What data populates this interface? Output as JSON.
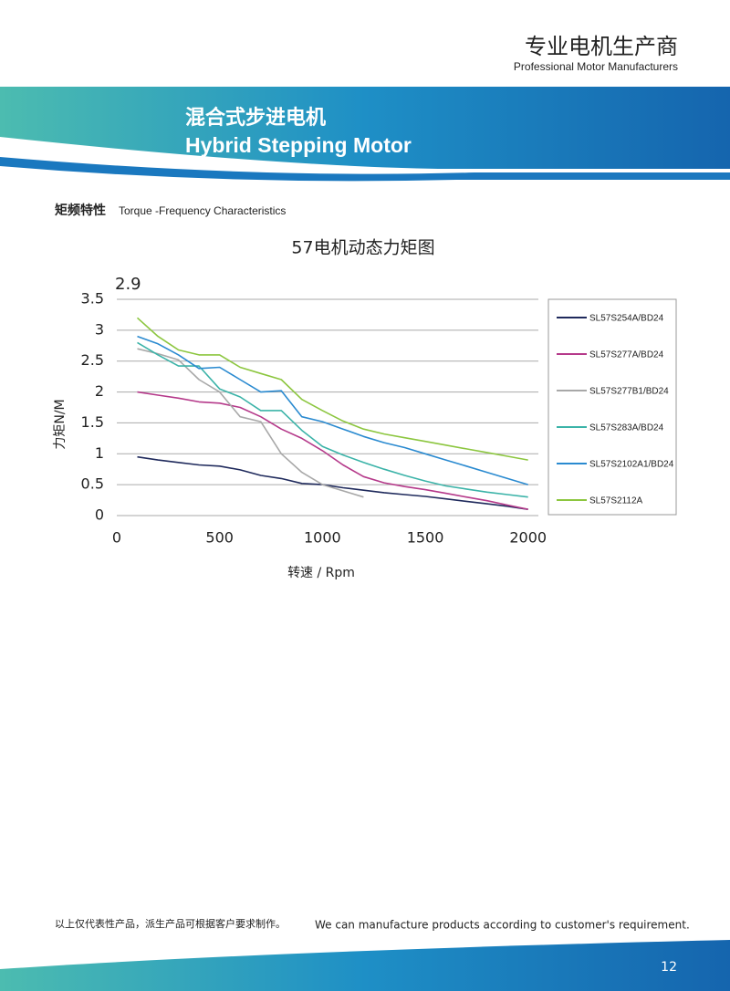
{
  "header": {
    "cn": "专业电机生产商",
    "en": "Professional Motor Manufacturers"
  },
  "banner": {
    "cn": "混合式步进电机",
    "en": "Hybrid Stepping Motor"
  },
  "section": {
    "cn": "矩频特性",
    "en": "Torque -Frequency Characteristics"
  },
  "chart_data": {
    "type": "line",
    "title": "57电机动态力矩图",
    "annotation": "2.9",
    "x_label": "转速 / Rpm",
    "y_label": "力矩N/M",
    "x": [
      100,
      200,
      300,
      400,
      500,
      600,
      700,
      800,
      900,
      1000,
      1100,
      1200,
      1300,
      1400,
      1500,
      1600,
      1700,
      1800,
      1900,
      2000
    ],
    "series": [
      {
        "name": "SL57S254A/BD24",
        "color": "#1f2a5c",
        "values": [
          0.95,
          0.9,
          0.86,
          0.82,
          0.8,
          0.74,
          0.65,
          0.6,
          0.52,
          0.5,
          0.45,
          0.41,
          0.37,
          0.34,
          0.31,
          0.27,
          0.23,
          0.19,
          0.15,
          0.1
        ]
      },
      {
        "name": "SL57S277A/BD24",
        "color": "#b5398a",
        "values": [
          2.0,
          1.95,
          1.9,
          1.84,
          1.82,
          1.75,
          1.6,
          1.4,
          1.25,
          1.05,
          0.82,
          0.63,
          0.53,
          0.47,
          0.42,
          0.36,
          0.3,
          0.24,
          0.17,
          0.1
        ]
      },
      {
        "name": "SL57S277B1/BD24",
        "color": "#a8a8a8",
        "values": [
          2.7,
          2.62,
          2.52,
          2.2,
          2.0,
          1.6,
          1.52,
          1.0,
          0.7,
          0.5,
          0.4,
          0.3,
          null,
          null,
          null,
          null,
          null,
          null,
          null,
          null
        ]
      },
      {
        "name": "SL57S283A/BD24",
        "color": "#3bb3a8",
        "values": [
          2.8,
          2.6,
          2.42,
          2.42,
          2.05,
          1.92,
          1.7,
          1.7,
          1.38,
          1.12,
          0.98,
          0.86,
          0.75,
          0.65,
          0.56,
          0.48,
          0.43,
          0.38,
          0.34,
          0.3
        ]
      },
      {
        "name": "SL57S2102A1/BD24",
        "color": "#2a8ad0",
        "values": [
          2.9,
          2.78,
          2.6,
          2.38,
          2.4,
          2.2,
          2.0,
          2.02,
          1.6,
          1.52,
          1.4,
          1.28,
          1.18,
          1.1,
          1.0,
          0.9,
          0.8,
          0.7,
          0.6,
          0.5
        ]
      },
      {
        "name": "SL57S2112A",
        "color": "#8cc63f",
        "values": [
          3.2,
          2.9,
          2.68,
          2.6,
          2.6,
          2.4,
          2.3,
          2.2,
          1.88,
          1.7,
          1.53,
          1.4,
          1.32,
          1.26,
          1.2,
          1.14,
          1.08,
          1.02,
          0.96,
          0.9
        ]
      }
    ],
    "xlim": [
      0,
      2050
    ],
    "xticks": [
      0,
      500,
      1000,
      1500,
      2000
    ],
    "ylim": [
      0,
      3.5
    ],
    "yticks": [
      0,
      0.5,
      1,
      1.5,
      2,
      2.5,
      3,
      3.5
    ],
    "grid": true
  },
  "footer": {
    "note_cn": "以上仅代表性产品，派生产品可根据客户要求制作。",
    "note_en": "We can manufacture products according to customer's requirement.",
    "page": "12"
  }
}
